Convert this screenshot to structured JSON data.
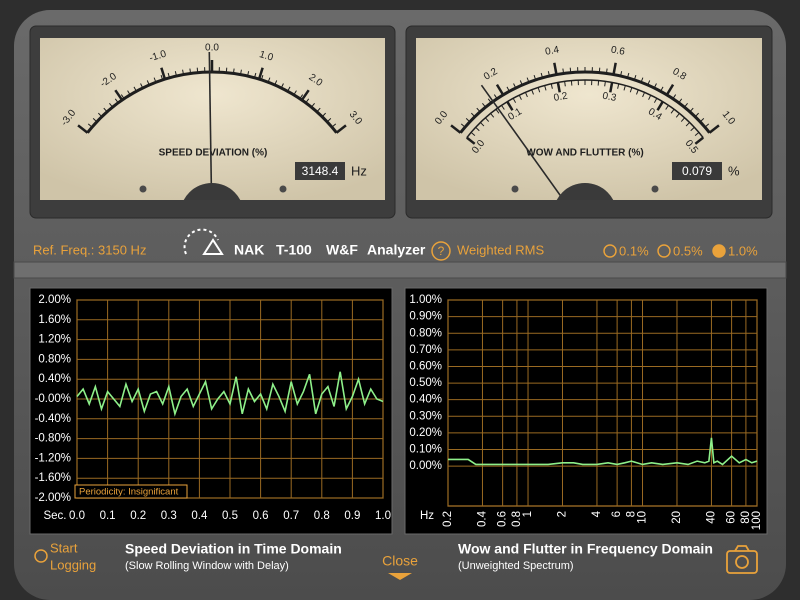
{
  "meters": [
    {
      "title": "SPEED DEVIATION (%)",
      "readout": 3148.4,
      "unit": "Hz",
      "needle": -0.05,
      "needle_scale": 0,
      "scales": [
        {
          "lim": [
            -3,
            3
          ],
          "ticks": [
            {
              "value": -3,
              "label": "-3.0"
            },
            {
              "value": -2,
              "label": "-2.0"
            },
            {
              "value": -1,
              "label": "-1.0"
            },
            {
              "value": 0,
              "label": "0.0"
            },
            {
              "value": 1,
              "label": "1.0"
            },
            {
              "value": 2,
              "label": "2.0"
            },
            {
              "value": 3,
              "label": "3.0"
            }
          ]
        }
      ]
    },
    {
      "title": "WOW AND FLUTTER (%)",
      "readout": 0.079,
      "unit": "%",
      "needle": 0.079,
      "needle_scale": 1,
      "scales": [
        {
          "lim": [
            0,
            1
          ],
          "ticks": [
            {
              "value": 0,
              "label": "0.0"
            },
            0.2,
            0.4,
            0.6,
            0.8,
            {
              "value": 1,
              "label": "1.0"
            }
          ]
        },
        {
          "lim": [
            0,
            0.5
          ],
          "ticks": [
            {
              "value": 0,
              "label": "0.0"
            },
            0.1,
            0.2,
            0.3,
            0.4,
            0.5
          ]
        }
      ]
    }
  ],
  "toolbar": {
    "ref_freq": "Ref. Freq.: 3150 Hz",
    "brand": [
      "NAK",
      "T-100",
      "W&F",
      "Analyzer"
    ],
    "help": "?",
    "mode": "Weighted RMS",
    "ranges": [
      "0.1%",
      "0.5%",
      "1.0%"
    ],
    "range_selected": 2
  },
  "chart_data": [
    {
      "type": "line",
      "title": "Speed Deviation in Time Domain",
      "subtitle": "(Slow Rolling Window with Delay)",
      "x_label": "Sec.",
      "annotation": "Periodicity: Insignificant",
      "color": "#8ef08a",
      "grid": true,
      "x": [
        0,
        0.02,
        0.04,
        0.06,
        0.08,
        0.1,
        0.12,
        0.14,
        0.16,
        0.18,
        0.2,
        0.22,
        0.24,
        0.26,
        0.28,
        0.3,
        0.32,
        0.34,
        0.36,
        0.38,
        0.4,
        0.42,
        0.44,
        0.46,
        0.48,
        0.5,
        0.52,
        0.54,
        0.56,
        0.58,
        0.6,
        0.62,
        0.64,
        0.66,
        0.68,
        0.7,
        0.72,
        0.74,
        0.76,
        0.78,
        0.8,
        0.82,
        0.84,
        0.86,
        0.88,
        0.9,
        0.92,
        0.94,
        0.96,
        0.98,
        1
      ],
      "values": [
        0.05,
        0.2,
        -0.1,
        0.25,
        -0.2,
        0.15,
        0.0,
        -0.15,
        0.3,
        -0.05,
        0.2,
        -0.25,
        0.1,
        0.15,
        -0.1,
        0.25,
        -0.3,
        0.05,
        0.2,
        -0.15,
        0.1,
        0.35,
        -0.2,
        0.0,
        0.15,
        -0.1,
        0.45,
        -0.3,
        0.2,
        -0.05,
        0.1,
        -0.2,
        0.3,
        0.05,
        -0.25,
        0.35,
        -0.1,
        0.15,
        0.5,
        -0.3,
        0.1,
        0.25,
        -0.15,
        0.55,
        -0.2,
        0.05,
        0.4,
        -0.1,
        0.2,
        0.0,
        -0.05
      ],
      "xlim": [
        0,
        1
      ],
      "xticks": [
        {
          "value": 0,
          "label": "0.0"
        },
        0.1,
        0.2,
        0.3,
        0.4,
        0.5,
        0.6,
        0.7,
        0.8,
        0.9,
        {
          "value": 1,
          "label": "1.0"
        }
      ],
      "ylim": [
        -2,
        2
      ],
      "yticks": [
        {
          "value": 2,
          "label": "2.00%"
        },
        {
          "value": 1.6,
          "label": "1.60%"
        },
        {
          "value": 1.2,
          "label": "1.20%"
        },
        {
          "value": 0.8,
          "label": "0.80%"
        },
        {
          "value": 0.4,
          "label": "0.40%"
        },
        {
          "value": 0,
          "label": "-0.00%"
        },
        {
          "value": -0.4,
          "label": "-0.40%"
        },
        {
          "value": -0.8,
          "label": "-0.80%"
        },
        {
          "value": -1.2,
          "label": "-1.20%"
        },
        {
          "value": -1.6,
          "label": "-1.60%"
        },
        {
          "value": -2,
          "label": "-2.00%"
        }
      ]
    },
    {
      "type": "line",
      "title": "Wow and Flutter in Frequency Domain",
      "subtitle": "(Unweighted Spectrum)",
      "x_label": "Hz",
      "color": "#8ef08a",
      "grid": true,
      "xscale": "log",
      "x": [
        0.2,
        0.3,
        0.35,
        0.4,
        0.6,
        0.8,
        1,
        1.5,
        2,
        2.5,
        3,
        4,
        5,
        6,
        7,
        8,
        10,
        12,
        15,
        20,
        25,
        30,
        35,
        38,
        40,
        42,
        45,
        50,
        60,
        70,
        80,
        90,
        100
      ],
      "values": [
        0.04,
        0.04,
        0.01,
        0.01,
        0.01,
        0.01,
        0.01,
        0.01,
        0.02,
        0.02,
        0.01,
        0.01,
        0.02,
        0.01,
        0.02,
        0.03,
        0.01,
        0.02,
        0.01,
        0.02,
        0.01,
        0.03,
        0.02,
        0.03,
        0.17,
        0.02,
        0.03,
        0.01,
        0.06,
        0.02,
        0.04,
        0.02,
        0.03
      ],
      "xlim": [
        0.2,
        100
      ],
      "xticks": [
        0.2,
        0.4,
        0.6,
        0.8,
        1,
        2,
        4,
        6,
        8,
        10,
        20,
        40,
        60,
        80,
        100
      ],
      "ylim": [
        -0.24,
        1
      ],
      "yticks": [
        {
          "value": 1,
          "label": "1.00%"
        },
        {
          "value": 0.9,
          "label": "0.90%"
        },
        {
          "value": 0.8,
          "label": "0.80%"
        },
        {
          "value": 0.7,
          "label": "0.70%"
        },
        {
          "value": 0.6,
          "label": "0.60%"
        },
        {
          "value": 0.5,
          "label": "0.50%"
        },
        {
          "value": 0.4,
          "label": "0.40%"
        },
        {
          "value": 0.3,
          "label": "0.30%"
        },
        {
          "value": 0.2,
          "label": "0.20%"
        },
        {
          "value": 0.1,
          "label": "0.10%"
        },
        {
          "value": 0,
          "label": "0.00%"
        }
      ]
    }
  ],
  "footer": {
    "logging": [
      "Start",
      "Logging"
    ],
    "close": "Close"
  }
}
